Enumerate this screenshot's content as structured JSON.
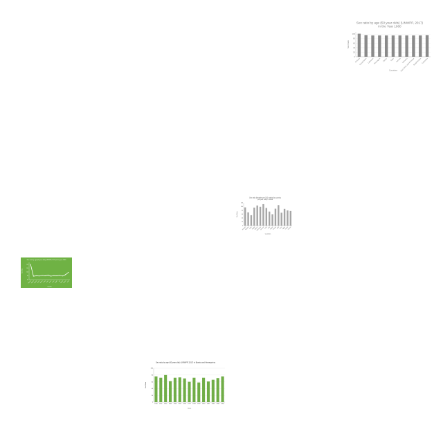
{
  "chart_data": [
    {
      "id": "sexratio1980",
      "type": "bar",
      "title": [
        "Sex ratio by age (50 year olds) (UNWPP, 2017)",
        "in the Year 1980"
      ],
      "xlabel": "Countries",
      "ylabel": "Sex Ratio",
      "categories": [
        "Finland",
        "Kazakhstan",
        "Lebanon",
        "Nicaragua",
        "Oman",
        "Togo",
        "Tunisia",
        "Vanuatu",
        "Sao Tome and Principe",
        "Saudi Arabia",
        "Colombia"
      ],
      "values": [
        102,
        95,
        94,
        94,
        94,
        94,
        94,
        94,
        94,
        94,
        95
      ],
      "ylim": [
        0,
        110
      ],
      "yticks": [
        0,
        20,
        40,
        60,
        80,
        100
      ],
      "grid": true,
      "colors": {
        "bar": "#8a8a8a",
        "background": "#ffffff",
        "text": "#7f7f7f"
      }
    },
    {
      "id": "gray-chart",
      "type": "bar",
      "title": [
        "Sex ratio (females per 100 males) by country",
        "(50 year olds) in 1980"
      ],
      "xlabel": "Countries",
      "ylabel": "Sex Ratio",
      "categories": [
        "Finland",
        "Bhutan",
        "Chile",
        "Egypt",
        "Gabon",
        "Germany",
        "Greece",
        "Haiti",
        "Iraq",
        "Japan",
        "Kenya",
        "Mali",
        "Peru",
        "Qatar",
        "Sudan",
        "Yemen"
      ],
      "values": [
        96,
        70,
        55,
        95,
        106,
        99,
        113,
        93,
        74,
        60,
        89,
        108,
        68,
        88,
        80,
        77
      ],
      "ylim": [
        0,
        120
      ],
      "yticks": [
        0,
        20,
        40,
        60,
        80,
        100,
        120
      ],
      "grid": false,
      "colors": {
        "bar": "#a6a6a6",
        "background": "#ffffff",
        "text": "#555555"
      }
    },
    {
      "id": "green-line",
      "type": "line",
      "title": "Sex ratio by age (50 year olds) (UNWPP, 2017) in the year 1980",
      "xlabel": "Country",
      "ylabel": "Sex Ratio",
      "categories": [
        "Albania",
        "Algeria",
        "Angola",
        "Benin",
        "Bolivia",
        "Chad",
        "Chile",
        "China",
        "Cuba",
        "Egypt",
        "Fiji",
        "Gabon",
        "Ghana",
        "Haiti"
      ],
      "values": [
        140,
        78,
        80,
        79,
        82,
        80,
        84,
        78,
        81,
        80,
        83,
        79,
        86,
        98
      ],
      "ylim": [
        60,
        150
      ],
      "yticks": [
        60,
        80,
        100,
        120,
        140
      ],
      "grid": false,
      "colors": {
        "line": "#ffffff",
        "background": "#6fb244",
        "text": "#ffffff"
      }
    },
    {
      "id": "bosnia",
      "type": "bar",
      "title": "Sex ratio by age (60 year olds) (UNWPP, 2017) in Bosnia and Herzegovina",
      "xlabel": "Years",
      "ylabel": "Sex Ratio",
      "categories": [
        "1950",
        "1951",
        "1952",
        "1953",
        "1954",
        "1955",
        "1956",
        "1957",
        "1958",
        "1959",
        "1960",
        "1961",
        "1962",
        "1963",
        "1964"
      ],
      "values": [
        76,
        72,
        80,
        62,
        72,
        73,
        70,
        60,
        72,
        58,
        72,
        61,
        66,
        71,
        76
      ],
      "ylim": [
        0,
        100
      ],
      "yticks": [
        0,
        20,
        40,
        60,
        80,
        100
      ],
      "grid": true,
      "colors": {
        "bar": "#70ad47",
        "background": "#ffffff",
        "text": "#333333"
      }
    }
  ]
}
